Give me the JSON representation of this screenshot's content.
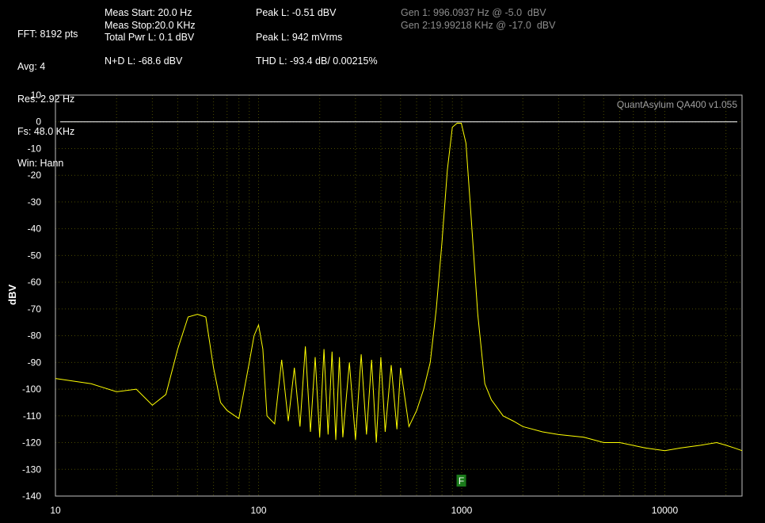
{
  "header": {
    "col1": [
      "FFT: 8192 pts",
      "Avg: 4",
      "Res: 2.92 Hz",
      "Fs: 48.0 KHz",
      "Win: Hann"
    ],
    "col2": [
      "Meas Start: 20.0 Hz",
      "Meas Stop:20.0 KHz",
      "Total Pwr L: 0.1 dBV",
      "N+D L: -68.6 dBV"
    ],
    "col3": [
      "Peak L: -0.51 dBV",
      "Peak L: 942 mVrms",
      "THD L: -93.4 dB/ 0.00215%"
    ],
    "gen": [
      "Gen 1: 996.0937 Hz @ -5.0  dBV",
      "Gen 2:19.99218 KHz @ -17.0  dBV"
    ]
  },
  "colors": {
    "trace": "#ffff00",
    "grid": "#4a4a00",
    "marker": "#1a7a1a",
    "ref_line": "#ffffff"
  },
  "chart_data": {
    "type": "line",
    "brand": "QuantAsylum QA400 v1.055",
    "ylabel": "dBV",
    "xlabel": "",
    "x_scale": "log",
    "xlim": [
      10,
      24000
    ],
    "ylim": [
      -140,
      10
    ],
    "x_ticks": [
      "10",
      "100",
      "1000",
      "10000"
    ],
    "y_ticks": [
      "10",
      "0",
      "-10",
      "-20",
      "-30",
      "-40",
      "-50",
      "-60",
      "-70",
      "-80",
      "-90",
      "-100",
      "-110",
      "-120",
      "-130",
      "-140"
    ],
    "reference_level": 0,
    "marker": {
      "label": "F",
      "x": 996
    },
    "series": [
      {
        "x": [
          10,
          15,
          20,
          25,
          30,
          35,
          40,
          45,
          50,
          55,
          60,
          65,
          70,
          80,
          90,
          95,
          100,
          105,
          110,
          120,
          130,
          140,
          150,
          160,
          170,
          180,
          190,
          200,
          210,
          220,
          230,
          240,
          250,
          260,
          280,
          300,
          320,
          340,
          360,
          380,
          400,
          420,
          450,
          480,
          500,
          550,
          600,
          650,
          700,
          750,
          800,
          850,
          900,
          950,
          996,
          1050,
          1100,
          1200,
          1300,
          1400,
          1600,
          1800,
          2000,
          2500,
          3000,
          4000,
          5000,
          6000,
          8000,
          10000,
          12000,
          15000,
          18000,
          20000,
          22000,
          24000
        ],
        "y": [
          -96,
          -98,
          -101,
          -100,
          -106,
          -102,
          -85,
          -73,
          -72,
          -73,
          -92,
          -105,
          -108,
          -111,
          -90,
          -80,
          -76,
          -85,
          -110,
          -113,
          -89,
          -112,
          -92,
          -114,
          -84,
          -116,
          -88,
          -118,
          -85,
          -117,
          -86,
          -119,
          -88,
          -118,
          -90,
          -119,
          -87,
          -117,
          -89,
          -120,
          -88,
          -116,
          -91,
          -115,
          -92,
          -114,
          -108,
          -100,
          -90,
          -70,
          -45,
          -18,
          -2,
          -0.5,
          -0.51,
          -8,
          -30,
          -72,
          -98,
          -104,
          -110,
          -112,
          -114,
          -116,
          -117,
          -118,
          -120,
          -120,
          -122,
          -123,
          -122,
          -121,
          -120,
          -121,
          -122,
          -123
        ]
      }
    ]
  }
}
